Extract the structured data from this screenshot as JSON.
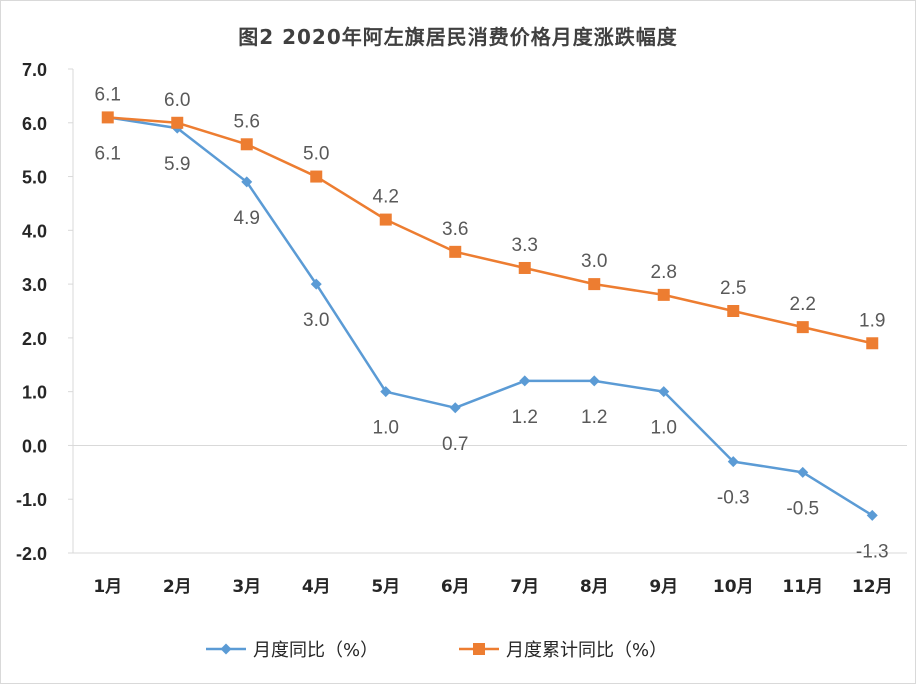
{
  "chart_data": {
    "type": "line",
    "title": "图2  2020年阿左旗居民消费价格月度涨跌幅度",
    "categories": [
      "1月",
      "2月",
      "3月",
      "4月",
      "5月",
      "6月",
      "7月",
      "8月",
      "9月",
      "10月",
      "11月",
      "12月"
    ],
    "ylim": [
      -2.0,
      7.0
    ],
    "yticks": [
      "7.0",
      "6.0",
      "5.0",
      "4.0",
      "3.0",
      "2.0",
      "1.0",
      "0.0",
      "-1.0",
      "-2.0"
    ],
    "grid": false,
    "legend_position": "bottom",
    "series": [
      {
        "name": "月度同比（%）",
        "marker": "diamond",
        "color": "#5b9bd5",
        "values": [
          6.1,
          5.9,
          4.9,
          3.0,
          1.0,
          0.7,
          1.2,
          1.2,
          1.0,
          -0.3,
          -0.5,
          -1.3
        ],
        "labels": [
          "6.1",
          "5.9",
          "4.9",
          "3.0",
          "1.0",
          "0.7",
          "1.2",
          "1.2",
          "1.0",
          "-0.3",
          "-0.5",
          "-1.3"
        ]
      },
      {
        "name": "月度累计同比（%）",
        "marker": "square",
        "color": "#ed7d31",
        "values": [
          6.1,
          6.0,
          5.6,
          5.0,
          4.2,
          3.6,
          3.3,
          3.0,
          2.8,
          2.5,
          2.2,
          1.9
        ],
        "labels": [
          "6.1",
          "6.0",
          "5.6",
          "5.0",
          "4.2",
          "3.6",
          "3.3",
          "3.0",
          "2.8",
          "2.5",
          "2.2",
          "1.9"
        ]
      }
    ]
  }
}
